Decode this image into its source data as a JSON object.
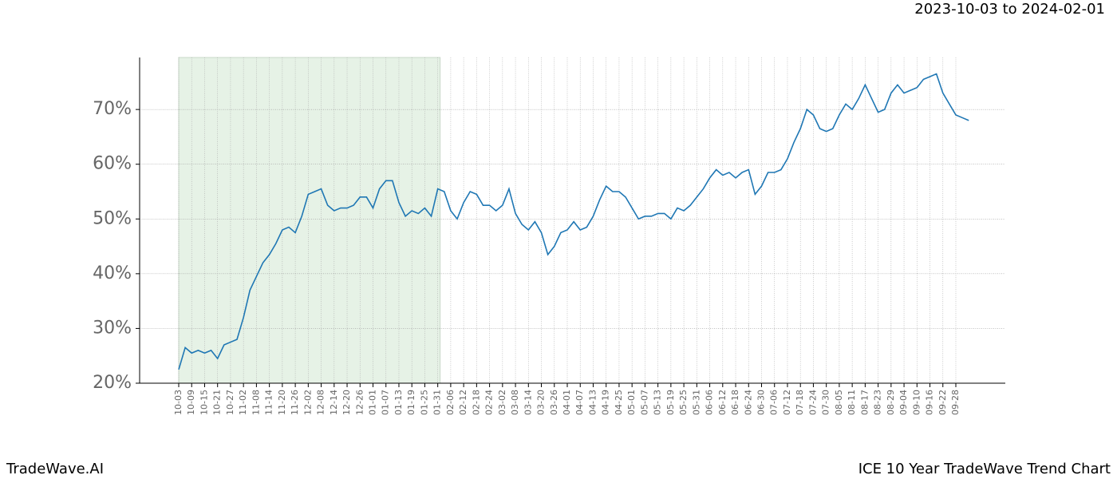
{
  "chart_data": {
    "type": "line",
    "title": "2023-10-03 to 2024-02-01",
    "footer_left": "TradeWave.AI",
    "footer_right": "ICE 10 Year TradeWave Trend Chart",
    "categories": [
      "10-03",
      null,
      "10-09",
      null,
      "10-15",
      null,
      "10-21",
      null,
      "10-27",
      null,
      "11-02",
      null,
      "11-08",
      null,
      "11-14",
      null,
      "11-20",
      null,
      "11-26",
      null,
      "12-02",
      null,
      "12-08",
      null,
      "12-14",
      null,
      "12-20",
      null,
      "12-26",
      null,
      "01-01",
      null,
      "01-07",
      null,
      "01-13",
      null,
      "01-19",
      null,
      "01-25",
      null,
      "01-31",
      null,
      "02-06",
      null,
      "02-12",
      null,
      "02-18",
      null,
      "02-24",
      null,
      "03-02",
      null,
      "03-08",
      null,
      "03-14",
      null,
      "03-20",
      null,
      "03-26",
      null,
      "04-01",
      null,
      "04-07",
      null,
      "04-13",
      null,
      "04-19",
      null,
      "04-25",
      null,
      "05-01",
      null,
      "05-07",
      null,
      "05-13",
      null,
      "05-19",
      null,
      "05-25",
      null,
      "05-31",
      null,
      "06-06",
      null,
      "06-12",
      null,
      "06-18",
      null,
      "06-24",
      null,
      "06-30",
      null,
      "07-06",
      null,
      "07-12",
      null,
      "07-18",
      null,
      "07-24",
      null,
      "07-30",
      null,
      "08-05",
      null,
      "08-11",
      null,
      "08-17",
      null,
      "08-23",
      null,
      "08-29",
      null,
      "09-04",
      null,
      "09-10",
      null,
      "09-16",
      null,
      "09-22",
      null,
      "09-28",
      null,
      null
    ],
    "series": [
      {
        "color": "#1f77b4",
        "values": [
          22.5,
          26.5,
          25.5,
          26,
          25.5,
          26,
          24.5,
          27,
          27.5,
          28,
          32,
          37,
          39.5,
          42,
          43.5,
          45.5,
          48,
          48.5,
          47.5,
          50.5,
          54.5,
          55,
          55.5,
          52.5,
          51.5,
          52,
          52,
          52.5,
          54,
          54,
          52,
          55.5,
          57,
          57,
          53,
          50.5,
          51.5,
          51,
          52,
          50.5,
          55.5,
          55,
          51.5,
          50,
          53,
          55,
          54.5,
          52.5,
          52.5,
          51.5,
          52.5,
          55.5,
          51,
          49,
          48,
          49.5,
          47.5,
          43.5,
          45,
          47.5,
          48,
          49.5,
          48,
          48.5,
          50.5,
          53.5,
          56,
          55,
          55,
          54,
          52,
          50,
          50.5,
          50.5,
          51,
          51,
          50,
          52,
          51.5,
          52.5,
          54,
          55.5,
          57.5,
          59,
          58,
          58.5,
          57.5,
          58.5,
          59,
          54.5,
          56,
          58.5,
          58.5,
          59,
          61,
          64,
          66.5,
          70,
          69,
          66.5,
          66,
          66.5,
          69,
          71,
          70,
          72,
          74.5,
          72,
          69.5,
          70,
          73,
          74.5,
          73,
          73.5,
          74,
          75.5,
          76,
          76.5,
          73,
          71,
          69,
          68.5,
          68
        ]
      }
    ],
    "shaded_span": [
      "10-03",
      "01-31"
    ],
    "shade_color": "#e6f2e6",
    "ylim": [
      20,
      79.5
    ],
    "yticks": [
      {
        "value": 20,
        "label": "20%"
      },
      {
        "value": 30,
        "label": "30%"
      },
      {
        "value": 40,
        "label": "40%"
      },
      {
        "value": 50,
        "label": "50%"
      },
      {
        "value": 60,
        "label": "60%"
      },
      {
        "value": 70,
        "label": "70%"
      }
    ],
    "grid": true
  }
}
